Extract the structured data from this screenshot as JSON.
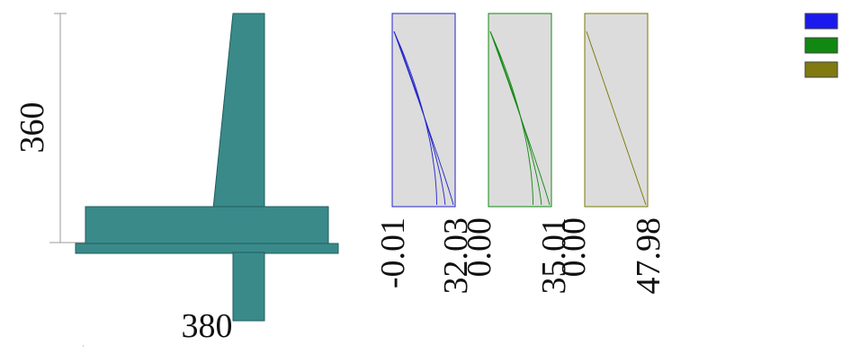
{
  "section": {
    "height_label": "360",
    "width_label": "380",
    "fill_color": "#3a8a8a",
    "edge_color": "#1f5e5e"
  },
  "panels": [
    {
      "color": "#2222cc",
      "min_label": "-0.01",
      "max_label": "32.03",
      "curve_count": 3
    },
    {
      "color": "#118811",
      "min_label": "0.00",
      "max_label": "35.01",
      "curve_count": 3
    },
    {
      "color": "#777700",
      "min_label": "0.00",
      "max_label": "47.98",
      "curve_count": 1
    }
  ],
  "legend": [
    {
      "color": "#1a1aee",
      "icon": "blue-swatch-icon"
    },
    {
      "color": "#118811",
      "icon": "green-swatch-icon"
    },
    {
      "color": "#807a10",
      "icon": "olive-swatch-icon"
    }
  ]
}
